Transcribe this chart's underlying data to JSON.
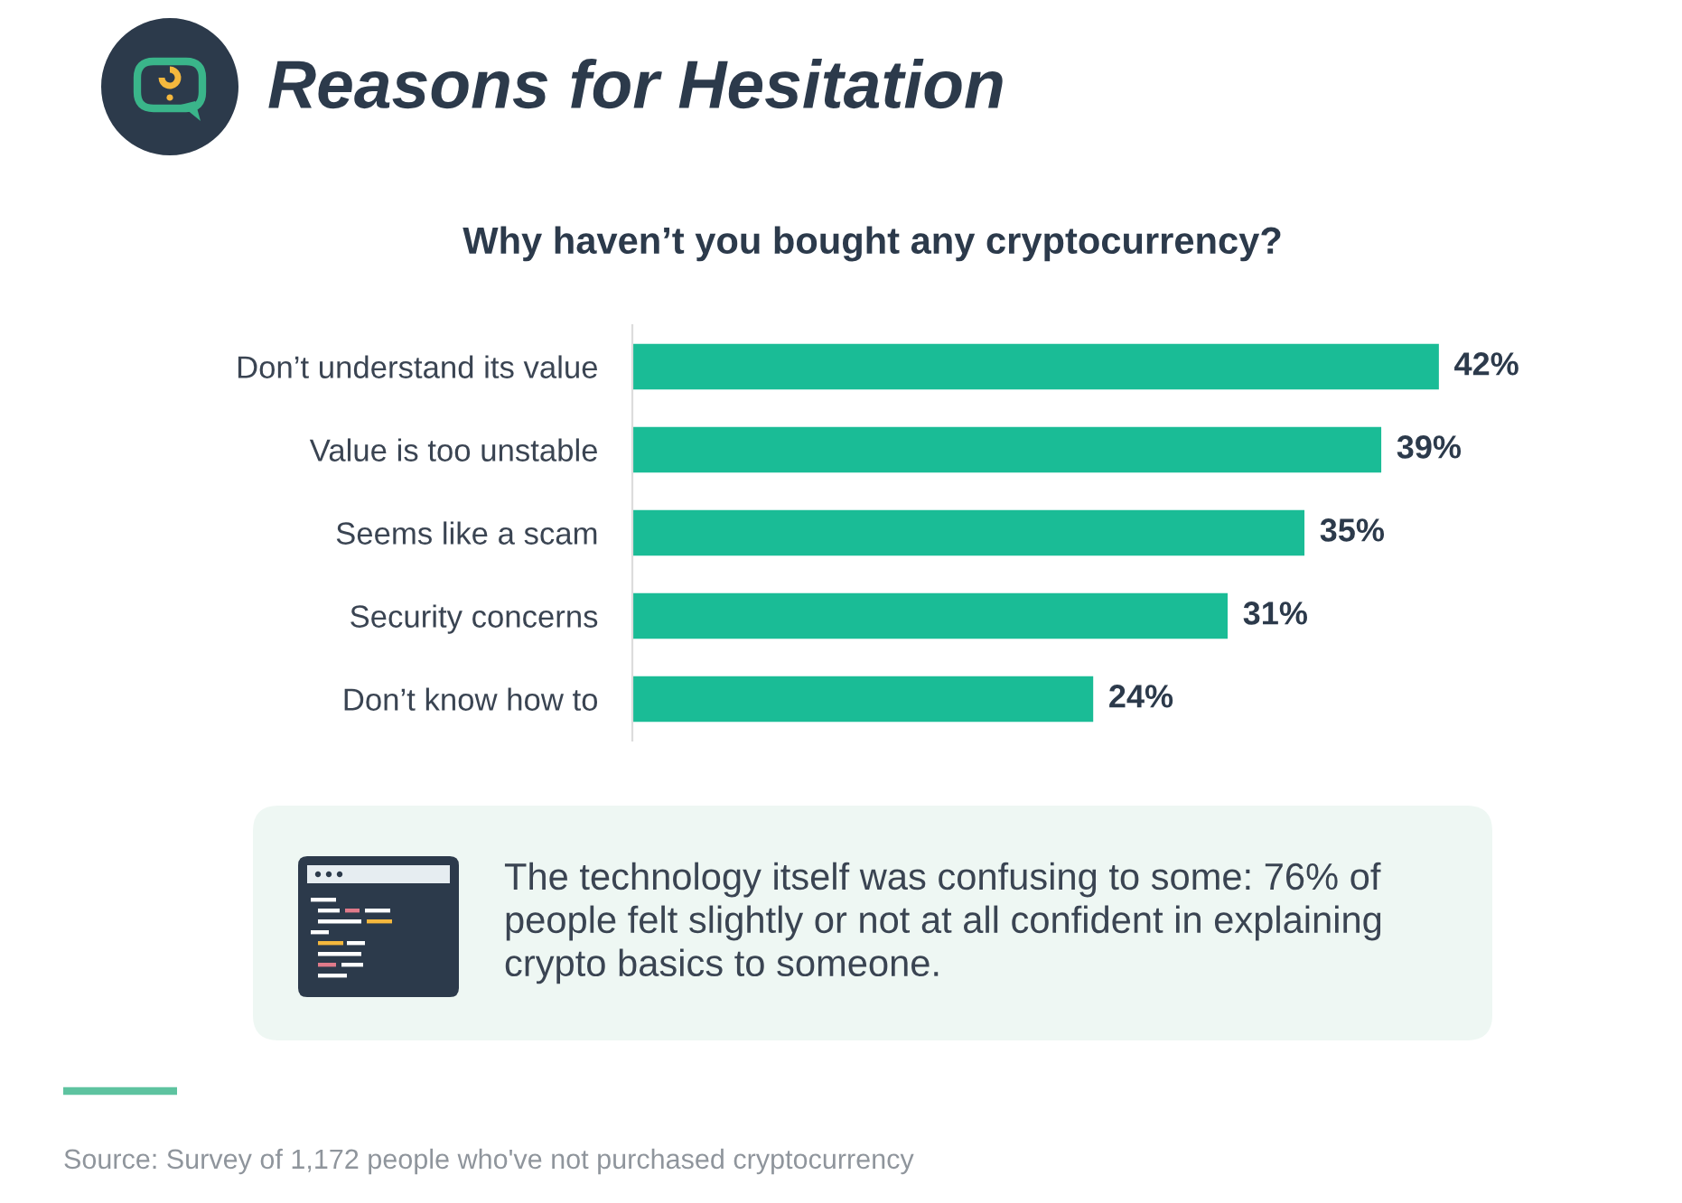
{
  "chart_data": {
    "type": "bar",
    "orientation": "horizontal",
    "title": "Reasons for Hesitation",
    "subtitle": "Why haven’t you bought any cryptocurrency?",
    "categories": [
      "Don’t understand its value",
      "Value is too unstable",
      "Seems like a scam",
      "Security concerns",
      "Don’t know how to"
    ],
    "values": [
      42,
      39,
      35,
      31,
      24
    ],
    "color": "#1abc96",
    "value_labels": [
      "42%",
      "39%",
      "35%",
      "31%",
      "24%"
    ],
    "tick_labels": "y",
    "annotations": [
      "The technology itself was confusing to some: 76% of people felt slightly or not at all confident in explaining crypto basics to someone.",
      "Source: Survey of 1,172 people who've not purchased cryptocurrency"
    ]
  }
}
